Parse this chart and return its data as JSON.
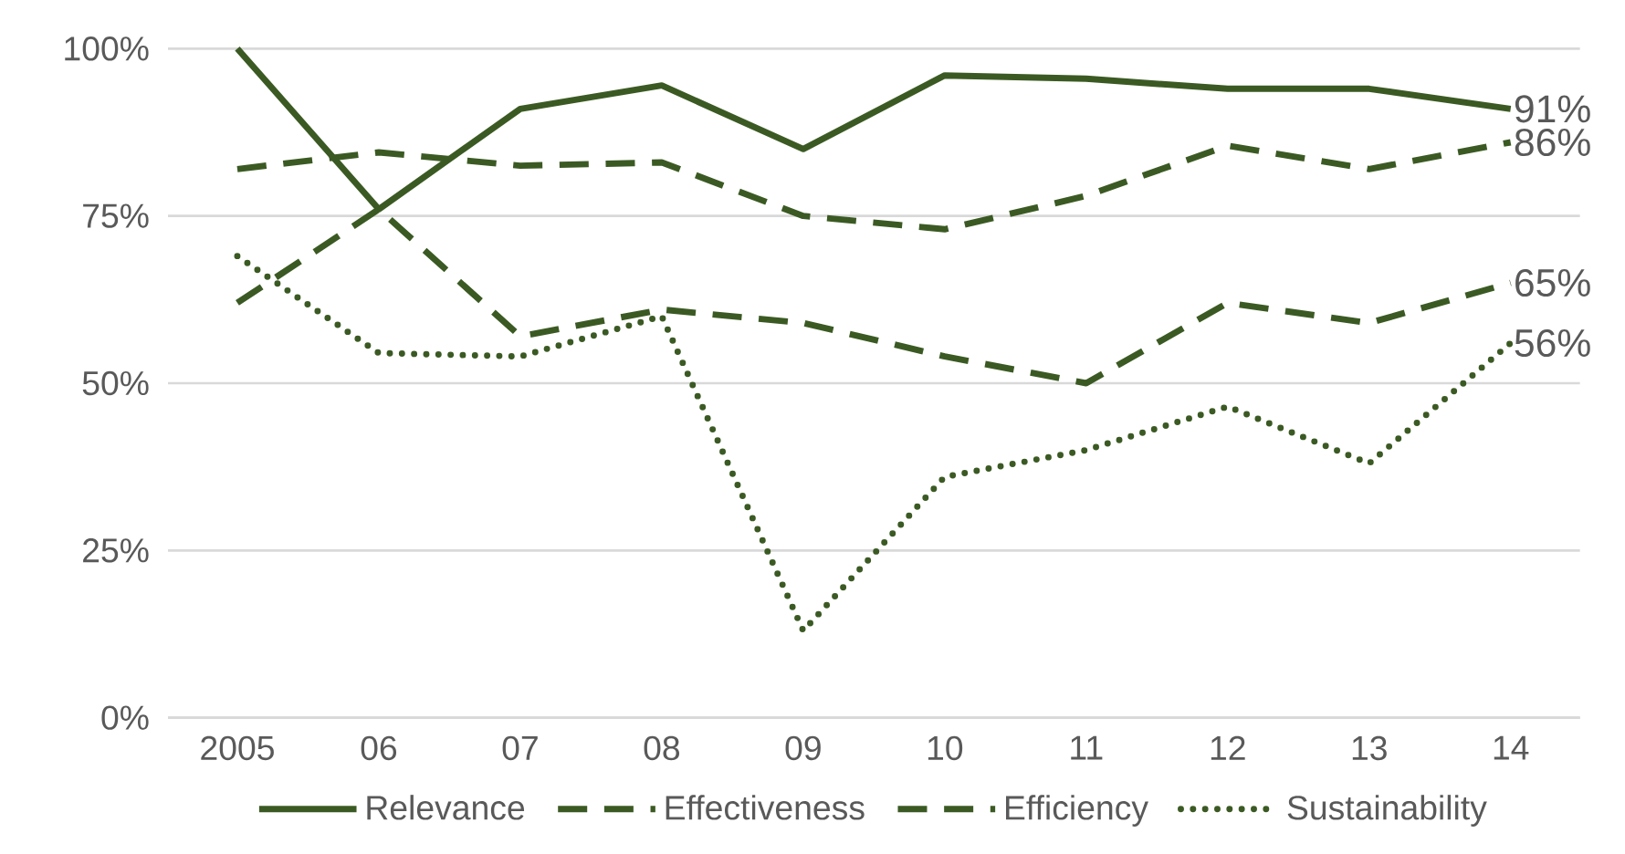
{
  "chart_data": {
    "type": "line",
    "categories": [
      "2005",
      "06",
      "07",
      "08",
      "09",
      "10",
      "11",
      "12",
      "13",
      "14"
    ],
    "series": [
      {
        "name": "Relevance",
        "color": "#3b5a23",
        "line_style": "solid",
        "values": [
          100,
          76,
          91,
          94.5,
          85,
          96,
          95.5,
          94,
          94,
          91
        ],
        "value_labels": [
          null,
          null,
          null,
          null,
          null,
          null,
          null,
          null,
          null,
          "91%"
        ]
      },
      {
        "name": "Effectiveness",
        "color": "#3b5a23",
        "line_style": "dashed",
        "values": [
          82,
          84.5,
          82.5,
          83,
          75,
          73,
          78,
          85.5,
          82,
          86
        ],
        "value_labels": [
          null,
          null,
          null,
          null,
          null,
          null,
          null,
          null,
          null,
          "86%"
        ]
      },
      {
        "name": "Efficiency",
        "color": "#3b5a23",
        "line_style": "dashed",
        "values": [
          62,
          76,
          57,
          61,
          59,
          54,
          50,
          62,
          59,
          65
        ],
        "value_labels": [
          null,
          null,
          null,
          null,
          null,
          null,
          null,
          null,
          null,
          "65%"
        ]
      },
      {
        "name": "Sustainability",
        "color": "#3b5a23",
        "line_style": "dotted",
        "values": [
          69,
          54.5,
          54,
          60,
          13,
          36,
          40,
          46.5,
          38,
          56
        ],
        "value_labels": [
          null,
          null,
          null,
          null,
          null,
          null,
          null,
          null,
          null,
          "56%"
        ]
      }
    ],
    "ylim": [
      0,
      100
    ],
    "yticks": [
      {
        "value": 0,
        "label": "0%"
      },
      {
        "value": 25,
        "label": "25%"
      },
      {
        "value": 50,
        "label": "50%"
      },
      {
        "value": 75,
        "label": "75%"
      },
      {
        "value": 100,
        "label": "100%"
      }
    ],
    "grid": "y",
    "legend": "bottom",
    "marker": "none"
  }
}
